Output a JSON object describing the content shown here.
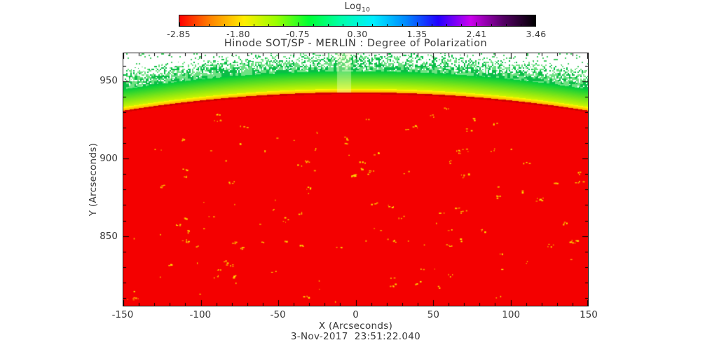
{
  "figure": {
    "title": "Hinode SOT/SP - MERLIN : Degree of Polarization",
    "timestamp": "3-Nov-2017  23:51:22.040"
  },
  "colorbar": {
    "scale_label": "Log",
    "scale_label_sub": "10",
    "tick_labels": [
      "-2.85",
      "-1.80",
      "-0.75",
      "0.30",
      "1.35",
      "2.41",
      "3.46"
    ],
    "gradient_colors": [
      "#ff0000",
      "#ff8800",
      "#ffee00",
      "#99ff00",
      "#00ff33",
      "#00ffaa",
      "#00eeff",
      "#0088ff",
      "#2200ff",
      "#cc00ee",
      "#550066",
      "#000000"
    ]
  },
  "axes": {
    "xlabel": "X (Arcseconds)",
    "ylabel": "Y (Arcseconds)",
    "xtick_labels": [
      "-150",
      "-100",
      "-50",
      "0",
      "50",
      "100",
      "150"
    ],
    "ytick_labels": [
      "850",
      "900",
      "950"
    ]
  },
  "chart_data": {
    "type": "heatmap",
    "title": "Hinode SOT/SP - MERLIN : Degree of Polarization",
    "observation_time": "3-Nov-2017 23:51:22.040",
    "xlabel": "X (Arcseconds)",
    "ylabel": "Y (Arcseconds)",
    "xlim": [
      -150,
      150
    ],
    "xticks": [
      -150,
      -100,
      -50,
      0,
      50,
      100,
      150
    ],
    "x_minor_step": 10,
    "ylim": [
      805,
      968
    ],
    "yticks": [
      850,
      900,
      950
    ],
    "y_minor_step": 10,
    "grid": false,
    "colorbar": {
      "label": "Log10",
      "position": "top",
      "ticks": [
        -2.85,
        -1.8,
        -0.75,
        0.3,
        1.35,
        2.41,
        3.46
      ],
      "range": [
        -2.85,
        3.46
      ]
    },
    "content": {
      "description": "Degree-of-polarization map of the solar limb: disk interior saturated red (low log10 polarization) with sparse tiny yellow flecks; thin bright yellow arc then green band along the limb (limb crosses y≈943 arcsec at x=0, curving down to y≈931 at x=±150); patchy green/white off-limb region above; white sky beyond; faint lighter vertical stripe artifact near x≈-8 arcsec above the limb.",
      "limb": {
        "center_x_arcsec": 0,
        "limb_y_at_center_arcsec": 943,
        "solar_radius_arcsec": 960
      },
      "colors": {
        "disk_red": "#f40000",
        "limb_dark_red": "#d20000",
        "limb_yellow": "#faff00",
        "limb_green": "#00cd3c",
        "offlimb_green": "#3cc85a",
        "background_white": "#ffffff",
        "fleck_yellow": "#ffee00"
      },
      "fleck_count": 135,
      "stripe_x_arcsec": [
        -12,
        -3
      ]
    }
  }
}
